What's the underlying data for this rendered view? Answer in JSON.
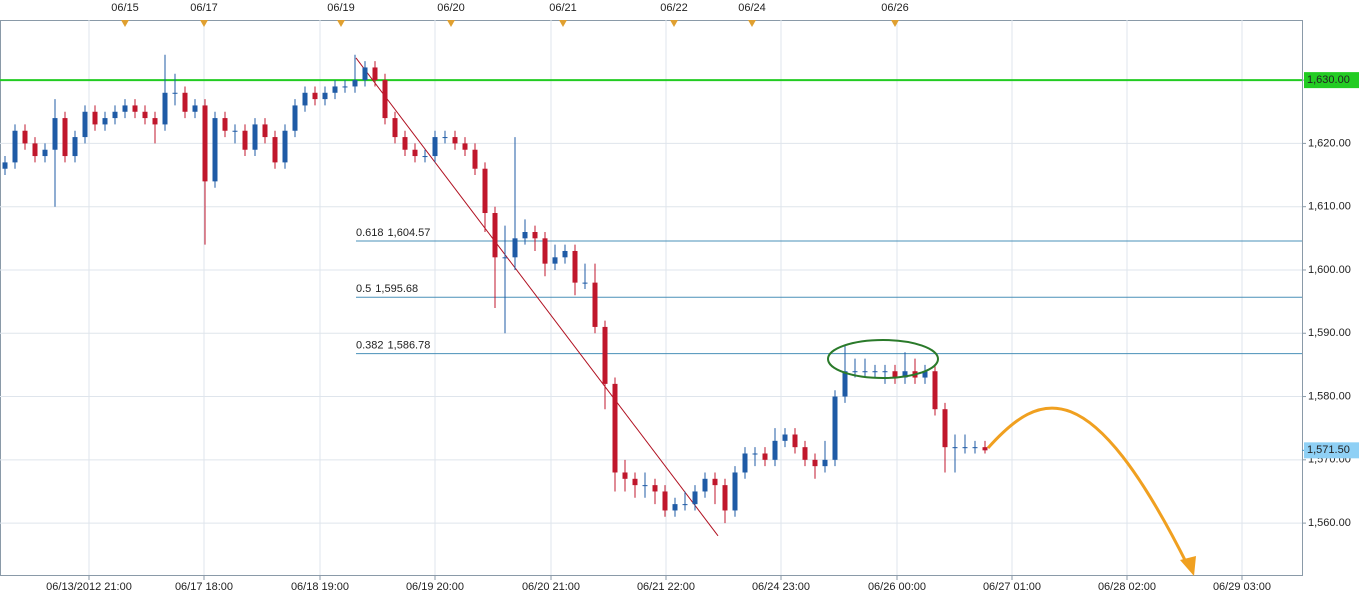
{
  "chart_data": {
    "type": "candlestick",
    "x": [
      0.5,
      1.5,
      2.5,
      3.5,
      4.5,
      5.5,
      6.5,
      7.5,
      8.5,
      9.5,
      10.5,
      11.5,
      12.5,
      13.5,
      14.5,
      15.5,
      16.5,
      17.5,
      18.5,
      19.5,
      20.5,
      21.5,
      22.5,
      23.5,
      24.5,
      25.5,
      26.5,
      27.5,
      28.5,
      29.5,
      30.5,
      31.5,
      32.5,
      33.5,
      34.5,
      35.5,
      36.5,
      37.5,
      38.5,
      39.5,
      40.5,
      41.5,
      42.5,
      43.5,
      44.5,
      45.5,
      46.5,
      47.5,
      48.5,
      49.5,
      50.5,
      51.5,
      52.5,
      53.5,
      54.5,
      55.5,
      56.5,
      57.5,
      58.5,
      59.5,
      60.5,
      61.5,
      62.5,
      63.5,
      64.5,
      65.5,
      66.5,
      67.5,
      68.5,
      69.5,
      70.5,
      71.5,
      72.5,
      73.5,
      74.5,
      75.5,
      76.5,
      77.5,
      78.5,
      79.5,
      80.5,
      81.5,
      82.5,
      83.5,
      84.5,
      85.5,
      86.5,
      87.5,
      88.5,
      89.5,
      90.5,
      91.5,
      92.5,
      93.5,
      94.5,
      95.5,
      96.5,
      97.5,
      98.5
    ],
    "open": [
      1616,
      1617,
      1622,
      1620,
      1618,
      1619,
      1624,
      1618,
      1621,
      1625,
      1623,
      1624,
      1625,
      1626,
      1625,
      1624,
      1623,
      1628,
      1628,
      1625,
      1626,
      1614,
      1624,
      1622,
      1622,
      1619,
      1623,
      1621,
      1617,
      1622,
      1626,
      1628,
      1627,
      1628,
      1629,
      1629,
      1630,
      1632,
      1630,
      1624,
      1621,
      1619,
      1618,
      1618,
      1621,
      1621,
      1620,
      1619,
      1616,
      1609,
      1602,
      1602,
      1605,
      1606,
      1605,
      1601,
      1602,
      1603,
      1598,
      1598,
      1591,
      1582,
      1568,
      1567,
      1566,
      1566,
      1565,
      1562,
      1563,
      1563,
      1565,
      1567,
      1566,
      1562,
      1568,
      1571,
      1571,
      1570,
      1573,
      1574,
      1572,
      1570,
      1569,
      1570,
      1580,
      1584,
      1584,
      1584,
      1584,
      1584,
      1583,
      1584,
      1583,
      1584,
      1578,
      1572,
      1572,
      1572,
      1572
    ],
    "high": [
      1618,
      1623,
      1623,
      1621,
      1620,
      1627,
      1625,
      1622,
      1626,
      1626,
      1625,
      1626,
      1627,
      1627,
      1626,
      1625,
      1634,
      1631,
      1629,
      1627,
      1627,
      1625,
      1625,
      1623,
      1623,
      1624,
      1624,
      1622,
      1623,
      1627,
      1629,
      1629,
      1629,
      1630,
      1630,
      1634,
      1633,
      1633,
      1631,
      1625,
      1622,
      1620,
      1619,
      1622,
      1622,
      1622,
      1621,
      1620,
      1617,
      1610,
      1607,
      1621,
      1608,
      1607,
      1606,
      1604,
      1604,
      1604,
      1601,
      1601,
      1592,
      1583,
      1570,
      1568,
      1568,
      1567,
      1566,
      1564,
      1565,
      1566,
      1568,
      1568,
      1567,
      1569,
      1572,
      1572,
      1572,
      1575,
      1575,
      1575,
      1573,
      1571,
      1573,
      1581,
      1588,
      1586,
      1586,
      1585,
      1585,
      1585,
      1587,
      1586,
      1585,
      1585,
      1579,
      1574,
      1574,
      1573,
      1573
    ],
    "low": [
      1615,
      1616,
      1619,
      1617,
      1617,
      1610,
      1617,
      1617,
      1620,
      1622,
      1622,
      1623,
      1624,
      1624,
      1623,
      1620,
      1622,
      1626,
      1624,
      1624,
      1604,
      1613,
      1621,
      1620,
      1618,
      1618,
      1620,
      1616,
      1616,
      1621,
      1625,
      1626,
      1626,
      1627,
      1628,
      1628,
      1629,
      1629,
      1623,
      1620,
      1618,
      1617,
      1617,
      1617,
      1620,
      1619,
      1618,
      1615,
      1606,
      1594,
      1590,
      1600,
      1604,
      1603,
      1599,
      1600,
      1601,
      1596,
      1597,
      1590,
      1578,
      1565,
      1565,
      1564,
      1564,
      1563,
      1561,
      1561,
      1562,
      1562,
      1564,
      1563,
      1560,
      1561,
      1567,
      1569,
      1569,
      1569,
      1572,
      1571,
      1569,
      1567,
      1568,
      1569,
      1579,
      1583,
      1583,
      1583,
      1582,
      1582,
      1582,
      1582,
      1582,
      1577,
      1568,
      1568,
      1571,
      1571,
      1571
    ],
    "close": [
      1617,
      1622,
      1620,
      1618,
      1619,
      1624,
      1618,
      1621,
      1625,
      1623,
      1624,
      1625,
      1626,
      1625,
      1624,
      1623,
      1628,
      1628,
      1625,
      1626,
      1614,
      1624,
      1622,
      1622,
      1619,
      1623,
      1621,
      1617,
      1622,
      1626,
      1628,
      1627,
      1628,
      1629,
      1629,
      1630,
      1632,
      1630,
      1624,
      1621,
      1619,
      1618,
      1618,
      1621,
      1621,
      1620,
      1619,
      1616,
      1609,
      1602,
      1602,
      1605,
      1606,
      1605,
      1601,
      1602,
      1603,
      1598,
      1598,
      1591,
      1582,
      1568,
      1567,
      1566,
      1566,
      1565,
      1562,
      1563,
      1563,
      1565,
      1567,
      1566,
      1562,
      1568,
      1571,
      1571,
      1570,
      1573,
      1574,
      1572,
      1570,
      1569,
      1570,
      1580,
      1584,
      1584,
      1584,
      1584,
      1584,
      1583,
      1584,
      1583,
      1584,
      1578,
      1572,
      1572,
      1572,
      1572,
      1571.5
    ],
    "up_color": "#1f5ba6",
    "down_color": "#c0172c",
    "xlim": [
      0,
      130.2
    ],
    "xticks": [
      {
        "value": 8.9,
        "label": "06/13/2012 21:00"
      },
      {
        "value": 20.4,
        "label": "06/17 18:00"
      },
      {
        "value": 32.0,
        "label": "06/18 19:00"
      },
      {
        "value": 43.5,
        "label": "06/19 20:00"
      },
      {
        "value": 55.1,
        "label": "06/20 21:00"
      },
      {
        "value": 66.6,
        "label": "06/21 22:00"
      },
      {
        "value": 78.1,
        "label": "06/24 23:00"
      },
      {
        "value": 89.7,
        "label": "06/26 00:00"
      },
      {
        "value": 101.2,
        "label": "06/27 01:00"
      },
      {
        "value": 112.7,
        "label": "06/28 02:00"
      },
      {
        "value": 124.2,
        "label": "06/29 03:00"
      }
    ],
    "top_ticks": [
      {
        "value": 12.5,
        "label": "06/15"
      },
      {
        "value": 20.4,
        "label": "06/17"
      },
      {
        "value": 34.1,
        "label": "06/19"
      },
      {
        "value": 45.1,
        "label": "06/20"
      },
      {
        "value": 56.3,
        "label": "06/21"
      },
      {
        "value": 67.4,
        "label": "06/22"
      },
      {
        "value": 75.2,
        "label": "06/24"
      },
      {
        "value": 89.5,
        "label": "06/26"
      }
    ],
    "ylim": [
      1551.8,
      1639.5
    ],
    "yticks": [
      {
        "value": 1560,
        "label": "1,560.00"
      },
      {
        "value": 1570,
        "label": "1,570.00"
      },
      {
        "value": 1580,
        "label": "1,580.00"
      },
      {
        "value": 1590,
        "label": "1,590.00"
      },
      {
        "value": 1600,
        "label": "1,600.00"
      },
      {
        "value": 1610,
        "label": "1,610.00"
      },
      {
        "value": 1620,
        "label": "1,620.00"
      },
      {
        "value": 1630,
        "label": "1,630.00"
      }
    ],
    "grid": true,
    "hline": {
      "value": 1630,
      "label": "1,630.00",
      "color": "#22cc22"
    },
    "last_price": {
      "value": 1571.5,
      "label": "1,571.50",
      "color": "#8fd0f5"
    },
    "trendline": {
      "x": [
        35.6,
        71.8
      ],
      "y": [
        1633.5,
        1558
      ],
      "color": "#b01020"
    },
    "fib_levels": [
      {
        "ratio": 0.618,
        "level": {
          "value": 1604.57,
          "label": "1,604.57"
        }
      },
      {
        "ratio": 0.5,
        "level": {
          "value": 1595.68,
          "label": "1,595.68"
        }
      },
      {
        "ratio": 0.382,
        "level": {
          "value": 1586.78,
          "label": "1,586.78"
        }
      }
    ],
    "fib_color": "#4a90b8"
  }
}
